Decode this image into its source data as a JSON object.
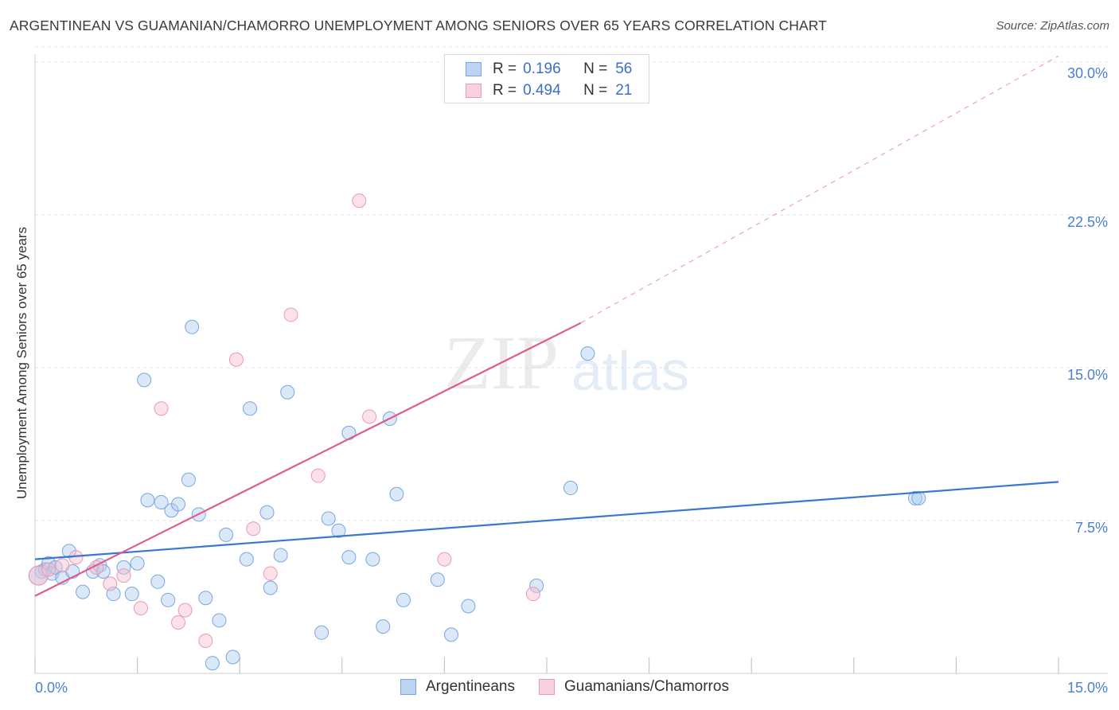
{
  "header": {
    "title": "ARGENTINEAN VS GUAMANIAN/CHAMORRO UNEMPLOYMENT AMONG SENIORS OVER 65 YEARS CORRELATION CHART",
    "source": "Source: ZipAtlas.com"
  },
  "watermark": {
    "zip": "ZIP",
    "atlas": "atlas"
  },
  "legend": {
    "rows": [
      {
        "r_label": "R =",
        "r_value": "0.196",
        "n_label": "N =",
        "n_value": "56",
        "color": "#aecbf0"
      },
      {
        "r_label": "R =",
        "r_value": "0.494",
        "n_label": "N =",
        "n_value": "21",
        "color": "#f7bfd0"
      }
    ]
  },
  "bottom_legend": {
    "items": [
      {
        "label": "Argentineans",
        "color": "#aecbf0"
      },
      {
        "label": "Guamanians/Chamorros",
        "color": "#f7bfd0"
      }
    ]
  },
  "chart_data": {
    "type": "scatter",
    "title": "ARGENTINEAN VS GUAMANIAN/CHAMORRO UNEMPLOYMENT AMONG SENIORS OVER 65 YEARS CORRELATION CHART",
    "xlabel": "",
    "ylabel": "Unemployment Among Seniors over 65 years",
    "xlim": [
      0,
      15
    ],
    "ylim": [
      0,
      30
    ],
    "x_tick_labels": [
      "0.0%",
      "15.0%"
    ],
    "y_tick_labels": [
      "7.5%",
      "15.0%",
      "22.5%",
      "30.0%"
    ],
    "y_ticks": [
      7.5,
      15,
      22.5,
      30
    ],
    "colors": {
      "argentineans": "#3a78cf",
      "guamanians": "#e05a8a"
    },
    "series": [
      {
        "name": "Argentineans",
        "points": [
          [
            0.1,
            5.0
          ],
          [
            0.15,
            5.1
          ],
          [
            0.2,
            5.4
          ],
          [
            0.25,
            4.9
          ],
          [
            0.3,
            5.2
          ],
          [
            0.4,
            4.7
          ],
          [
            0.5,
            6.0
          ],
          [
            0.55,
            5.0
          ],
          [
            0.7,
            4.0
          ],
          [
            0.85,
            5.0
          ],
          [
            0.95,
            5.3
          ],
          [
            1.0,
            5.0
          ],
          [
            1.15,
            3.9
          ],
          [
            1.3,
            5.2
          ],
          [
            1.42,
            3.9
          ],
          [
            1.5,
            5.4
          ],
          [
            1.6,
            14.4
          ],
          [
            1.65,
            8.5
          ],
          [
            1.8,
            4.5
          ],
          [
            1.85,
            8.4
          ],
          [
            1.95,
            3.6
          ],
          [
            2.0,
            8.0
          ],
          [
            2.1,
            8.3
          ],
          [
            2.25,
            9.5
          ],
          [
            2.3,
            17.0
          ],
          [
            2.4,
            7.8
          ],
          [
            2.5,
            3.7
          ],
          [
            2.6,
            0.5
          ],
          [
            2.7,
            2.6
          ],
          [
            2.8,
            6.8
          ],
          [
            2.9,
            0.8
          ],
          [
            3.1,
            5.6
          ],
          [
            3.15,
            13.0
          ],
          [
            3.4,
            7.9
          ],
          [
            3.45,
            4.2
          ],
          [
            3.6,
            5.8
          ],
          [
            3.7,
            13.8
          ],
          [
            4.2,
            2.0
          ],
          [
            4.3,
            7.6
          ],
          [
            4.45,
            7.0
          ],
          [
            4.6,
            5.7
          ],
          [
            4.6,
            11.8
          ],
          [
            4.95,
            5.6
          ],
          [
            5.1,
            2.3
          ],
          [
            5.2,
            12.5
          ],
          [
            5.3,
            8.8
          ],
          [
            5.4,
            3.6
          ],
          [
            5.9,
            4.6
          ],
          [
            6.1,
            1.9
          ],
          [
            6.35,
            3.3
          ],
          [
            7.35,
            4.3
          ],
          [
            7.85,
            9.1
          ],
          [
            8.1,
            15.7
          ],
          [
            12.9,
            8.6
          ],
          [
            12.95,
            8.6
          ],
          [
            0.05,
            4.8
          ]
        ]
      },
      {
        "name": "Guamanians/Chamorros",
        "points": [
          [
            0.05,
            4.8
          ],
          [
            0.2,
            5.1
          ],
          [
            0.4,
            5.3
          ],
          [
            0.6,
            5.7
          ],
          [
            0.9,
            5.2
          ],
          [
            1.1,
            4.4
          ],
          [
            1.3,
            4.8
          ],
          [
            1.55,
            3.2
          ],
          [
            1.85,
            13.0
          ],
          [
            2.1,
            2.5
          ],
          [
            2.2,
            3.1
          ],
          [
            2.5,
            1.6
          ],
          [
            2.95,
            15.4
          ],
          [
            3.2,
            7.1
          ],
          [
            3.45,
            4.9
          ],
          [
            3.75,
            17.6
          ],
          [
            4.15,
            9.7
          ],
          [
            4.75,
            23.2
          ],
          [
            4.9,
            12.6
          ],
          [
            6.0,
            5.6
          ],
          [
            7.3,
            3.9
          ]
        ]
      }
    ],
    "trendlines": [
      {
        "series": "Argentineans",
        "x": [
          0,
          15
        ],
        "y": [
          5.6,
          9.4
        ]
      },
      {
        "series": "Guamanians/Chamorros",
        "x": [
          0,
          8.0
        ],
        "y": [
          3.8,
          17.2
        ],
        "dashed_extension_to": [
          15,
          30.3
        ]
      }
    ]
  }
}
